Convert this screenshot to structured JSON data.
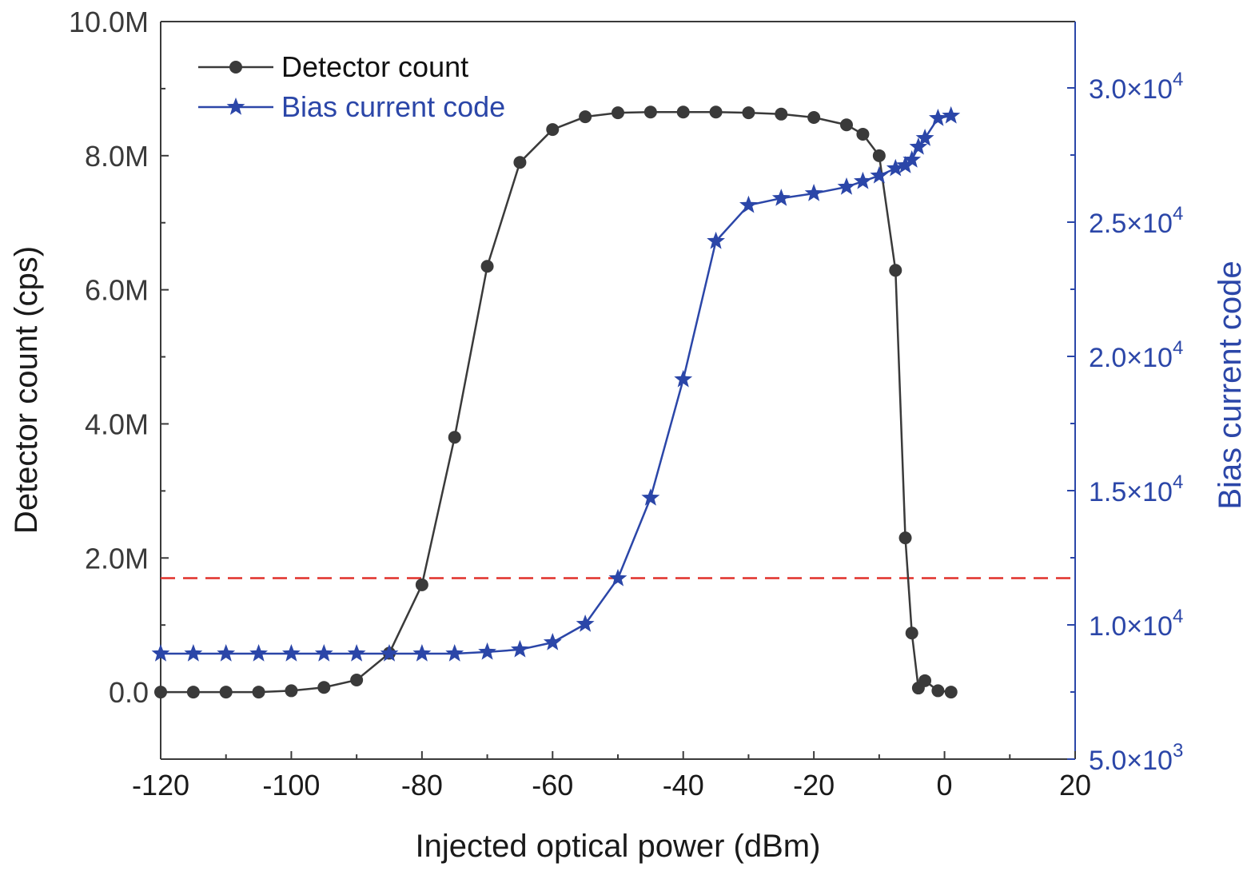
{
  "chart_data": {
    "type": "line",
    "xlabel": "Injected optical power (dBm)",
    "ylabel": "Detector count (cps)",
    "y2label": "Bias current code",
    "xlim": [
      -120,
      20
    ],
    "ylim": [
      -1000000,
      10000000
    ],
    "y2lim": [
      5000,
      32470
    ],
    "xticks": [
      -120,
      -100,
      -80,
      -60,
      -40,
      -20,
      0,
      20
    ],
    "yticks": [
      0,
      2000000,
      4000000,
      6000000,
      8000000,
      10000000
    ],
    "ytick_labels": [
      "0.0",
      "2.0M",
      "4.0M",
      "6.0M",
      "8.0M",
      "10.0M"
    ],
    "y2ticks": [
      5000,
      10000,
      15000,
      20000,
      25000,
      30000
    ],
    "y2tick_labels": [
      {
        "mantissa": "5.0×10",
        "exp": "3"
      },
      {
        "mantissa": "1.0×10",
        "exp": "4"
      },
      {
        "mantissa": "1.5×10",
        "exp": "4"
      },
      {
        "mantissa": "2.0×10",
        "exp": "4"
      },
      {
        "mantissa": "2.5×10",
        "exp": "4"
      },
      {
        "mantissa": "3.0×10",
        "exp": "4"
      }
    ],
    "legend_position": "top-left",
    "grid": false,
    "threshold_line": {
      "y": 1700000,
      "color": "#e0302a",
      "style": "dashed"
    },
    "series": [
      {
        "name": "Detector count",
        "axis": "left",
        "color": "#3a3a3a",
        "marker": "circle",
        "x": [
          -120,
          -115,
          -110,
          -105,
          -100,
          -95,
          -90,
          -85,
          -80,
          -75,
          -70,
          -65,
          -60,
          -55,
          -50,
          -45,
          -40,
          -35,
          -30,
          -25,
          -20,
          -15,
          -12.5,
          -10,
          -7.5,
          -6,
          -5,
          -4,
          -3,
          -1,
          1
        ],
        "y": [
          0,
          0,
          0,
          0,
          20000,
          70000,
          180000,
          580000,
          1600000,
          3800000,
          6350000,
          7900000,
          8390000,
          8580000,
          8640000,
          8650000,
          8650000,
          8650000,
          8640000,
          8620000,
          8570000,
          8460000,
          8320000,
          8000000,
          6290000,
          2300000,
          880000,
          60000,
          170000,
          20000,
          0
        ]
      },
      {
        "name": "Bias current code",
        "axis": "right",
        "color": "#2b46a8",
        "marker": "star",
        "x": [
          -120,
          -115,
          -110,
          -105,
          -100,
          -95,
          -90,
          -85,
          -80,
          -75,
          -70,
          -65,
          -60,
          -55,
          -50,
          -45,
          -40,
          -35,
          -30,
          -25,
          -20,
          -15,
          -12.5,
          -10,
          -7.5,
          -6,
          -5,
          -4,
          -3,
          -1,
          1
        ],
        "y": [
          8930,
          8930,
          8930,
          8930,
          8930,
          8930,
          8930,
          8930,
          8930,
          8930,
          8990,
          9080,
          9345,
          10030,
          11730,
          14730,
          19140,
          24290,
          25630,
          25890,
          26070,
          26310,
          26520,
          26730,
          27000,
          27110,
          27320,
          27800,
          28125,
          28870,
          28960
        ]
      }
    ]
  }
}
